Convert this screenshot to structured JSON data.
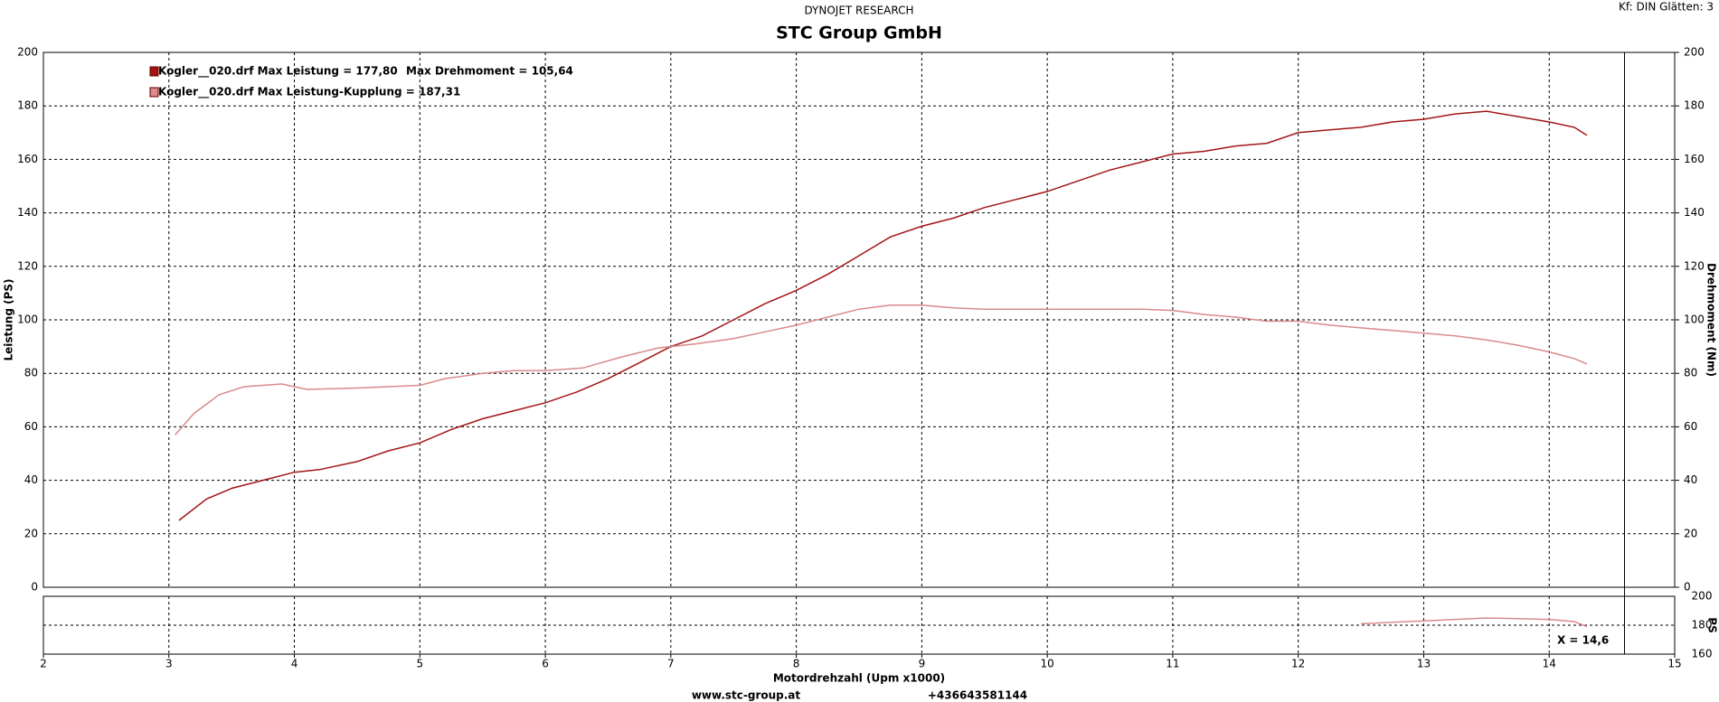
{
  "chart_data": [
    {
      "type": "line",
      "title": "STC Group GmbH",
      "subtitle": "DYNOJET RESEARCH",
      "annotation": "Kf: DIN  Glätten: 3",
      "y_label": "Leistung (PS)",
      "y2_label": "Drehmoment (Nm)",
      "xlim": [
        2,
        15
      ],
      "xticks": [
        2,
        3,
        4,
        5,
        6,
        7,
        8,
        9,
        10,
        11,
        12,
        13,
        14,
        15
      ],
      "ylim": [
        0,
        200
      ],
      "yticks": [
        0,
        20,
        40,
        60,
        80,
        100,
        120,
        140,
        160,
        180,
        200
      ],
      "y2lim": [
        0,
        200
      ],
      "y2ticks": [
        0,
        20,
        40,
        60,
        80,
        100,
        120,
        140,
        160,
        180,
        200
      ],
      "grid": true,
      "cursor_x": 14.6,
      "series": [
        {
          "name": "Kogler__020.drf Max Leistung = 177,80",
          "color": "#a31515",
          "x": [
            3.08,
            3.3,
            3.5,
            3.75,
            4.0,
            4.2,
            4.5,
            4.75,
            5.0,
            5.25,
            5.5,
            5.75,
            6.0,
            6.25,
            6.5,
            6.75,
            7.0,
            7.25,
            7.5,
            7.75,
            8.0,
            8.25,
            8.5,
            8.75,
            9.0,
            9.25,
            9.5,
            9.75,
            10.0,
            10.25,
            10.5,
            10.75,
            11.0,
            11.25,
            11.5,
            11.75,
            12.0,
            12.25,
            12.5,
            12.75,
            13.0,
            13.25,
            13.5,
            13.75,
            14.0,
            14.2,
            14.3
          ],
          "values": [
            25,
            33,
            37,
            40,
            43,
            44,
            47,
            51,
            54,
            59,
            63,
            66,
            69,
            73,
            78,
            84,
            90,
            94,
            100,
            106,
            111,
            117,
            124,
            131,
            135,
            138,
            142,
            145,
            148,
            152,
            156,
            159,
            162,
            163,
            165,
            166,
            170,
            171,
            172,
            174,
            175,
            177,
            178,
            176,
            174,
            172,
            169
          ]
        },
        {
          "name": "Max Drehmoment = 105,64",
          "color": "#d98a8a",
          "axis": "y2",
          "x": [
            3.05,
            3.2,
            3.4,
            3.6,
            3.9,
            4.1,
            4.5,
            5.0,
            5.2,
            5.5,
            5.75,
            6.0,
            6.3,
            6.6,
            6.9,
            7.2,
            7.5,
            7.75,
            8.0,
            8.25,
            8.5,
            8.75,
            9.0,
            9.25,
            9.5,
            9.75,
            10.0,
            10.25,
            10.5,
            10.75,
            11.0,
            11.25,
            11.5,
            11.75,
            12.0,
            12.25,
            12.5,
            12.75,
            13.0,
            13.25,
            13.5,
            13.75,
            14.0,
            14.2,
            14.3
          ],
          "values": [
            57,
            65,
            72,
            75,
            76,
            74,
            74.5,
            75.5,
            78,
            80,
            81,
            81,
            82,
            86,
            89.5,
            91,
            93,
            95.5,
            98,
            101,
            104,
            105.5,
            105.5,
            104.5,
            104,
            104,
            104,
            104,
            104,
            104,
            103.5,
            102,
            101,
            99.5,
            99.5,
            98,
            97,
            96,
            95,
            94,
            92.5,
            90.5,
            88,
            85.5,
            83.5
          ]
        }
      ]
    },
    {
      "type": "line",
      "x_label": "Motordrehzahl (Upm x1000)",
      "y_label": "PS",
      "annotation": "X = 14,6",
      "xlim": [
        2,
        15
      ],
      "xticks": [
        2,
        3,
        4,
        5,
        6,
        7,
        8,
        9,
        10,
        11,
        12,
        13,
        14,
        15
      ],
      "ylim": [
        160,
        200
      ],
      "yticks": [
        160,
        180,
        200
      ],
      "grid": true,
      "series": [
        {
          "name": "Kogler__020.drf Max Leistung-Kupplung = 187,31",
          "color": "#d98a8a",
          "x": [
            12.5,
            12.75,
            13.0,
            13.25,
            13.5,
            13.75,
            14.0,
            14.2,
            14.3
          ],
          "values": [
            181,
            182,
            183,
            184,
            185,
            184.5,
            184,
            182.5,
            179
          ]
        }
      ]
    }
  ],
  "footer": [
    "www.stc-group.at",
    "+436643581144"
  ]
}
